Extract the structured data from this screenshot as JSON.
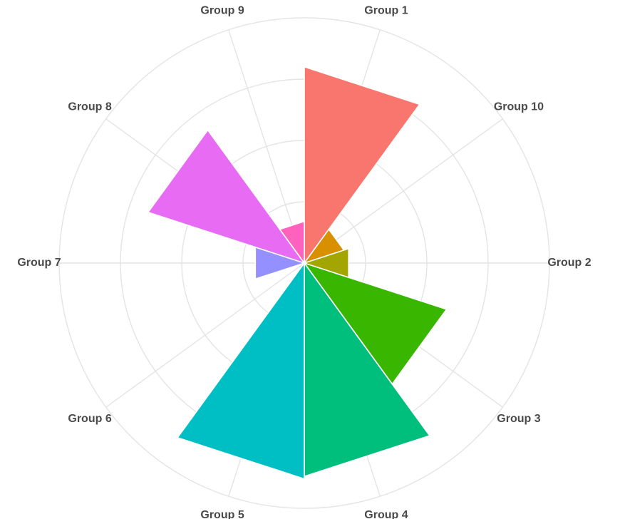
{
  "chart_data": {
    "type": "bar",
    "coordinate_system": "polar",
    "categories": [
      "Group 1",
      "Group 10",
      "Group 2",
      "Group 3",
      "Group 4",
      "Group 5",
      "Group 6",
      "Group 7",
      "Group 8",
      "Group 9"
    ],
    "values": [
      8.0,
      1.7,
      1.9,
      6.1,
      8.7,
      8.8,
      0.1,
      2.1,
      6.7,
      1.7
    ],
    "colors": [
      "#f8766d",
      "#d89000",
      "#a3a500",
      "#39b600",
      "#00bf7d",
      "#00bfc4",
      "#00b0f6",
      "#9590ff",
      "#e76bf3",
      "#ff62bc"
    ],
    "title": "",
    "xlabel": "",
    "ylabel": "",
    "rlim": [
      0,
      10
    ],
    "grid": true,
    "legend": "none"
  }
}
